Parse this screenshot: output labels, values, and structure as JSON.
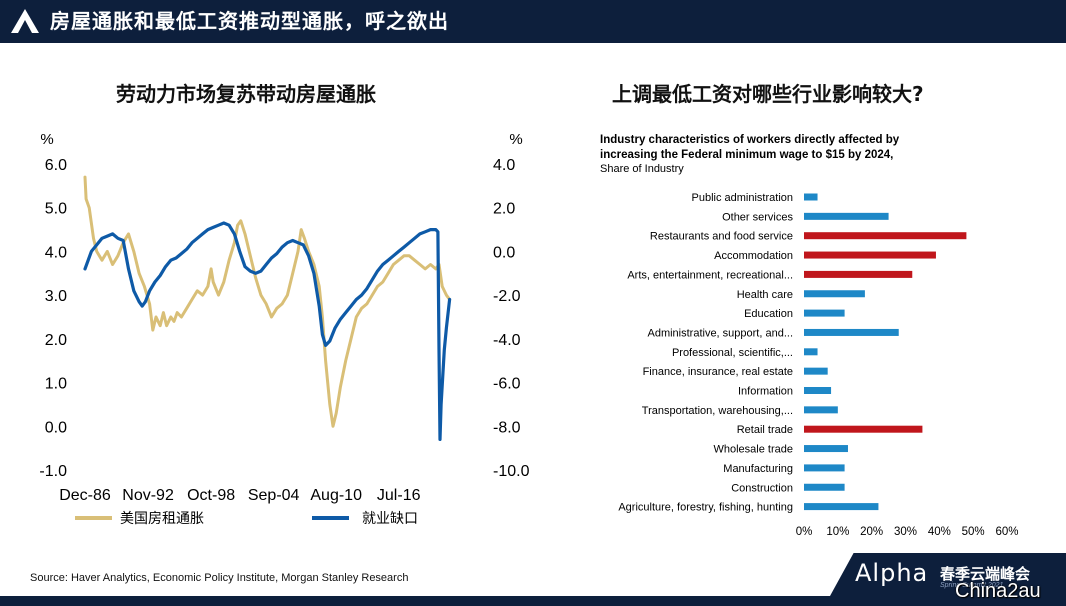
{
  "header": {
    "title": "房屋通胀和最低工资推动型通胀，呼之欲出"
  },
  "left_panel": {
    "title": "劳动力市场复苏带动房屋通胀"
  },
  "right_panel": {
    "title": "上调最低工资对哪些行业影响较大?"
  },
  "footer": {
    "source": "Source: Haver Analytics, Economic Policy Institute, Morgan Stanley Research",
    "brand_alpha": "Alpha",
    "brand_cn": "春季云端峰会",
    "brand_sub": "Spring Summit 2021",
    "watermark": "China2au"
  },
  "colors": {
    "navy": "#0d1f3c",
    "rent": "#d9bf77",
    "jobs_gap": "#0e5aa7",
    "bar_blue": "#1e88c7",
    "bar_red": "#c0161c"
  },
  "chart_data": [
    {
      "type": "line",
      "title": "劳动力市场复苏带动房屋通胀",
      "left_axis_unit": "%",
      "right_axis_unit": "%",
      "y_left_ticks": [
        "6.0",
        "5.0",
        "4.0",
        "3.0",
        "2.0",
        "1.0",
        "0.0",
        "-1.0"
      ],
      "y_right_ticks": [
        "4.0",
        "2.0",
        "0.0",
        "-2.0",
        "-4.0",
        "-6.0",
        "-8.0",
        "-10.0"
      ],
      "ylim_left": [
        -1,
        6
      ],
      "ylim_right": [
        -10,
        4
      ],
      "x_ticks": [
        "Dec-86",
        "Nov-92",
        "Oct-98",
        "Sep-04",
        "Aug-10",
        "Jul-16"
      ],
      "xlim": [
        1986.9,
        2022.0
      ],
      "series": [
        {
          "name": "美国房租通胀",
          "axis": "left",
          "points": [
            [
              1986.9,
              5.7
            ],
            [
              1987.0,
              5.2
            ],
            [
              1987.3,
              5.0
            ],
            [
              1987.7,
              4.3
            ],
            [
              1988.0,
              4.0
            ],
            [
              1988.5,
              3.8
            ],
            [
              1989.0,
              4.0
            ],
            [
              1989.5,
              3.7
            ],
            [
              1990.0,
              3.9
            ],
            [
              1990.5,
              4.2
            ],
            [
              1991.0,
              4.4
            ],
            [
              1991.5,
              4.0
            ],
            [
              1992.0,
              3.5
            ],
            [
              1992.5,
              3.2
            ],
            [
              1993.0,
              2.8
            ],
            [
              1993.3,
              2.2
            ],
            [
              1993.6,
              2.5
            ],
            [
              1994.0,
              2.3
            ],
            [
              1994.3,
              2.6
            ],
            [
              1994.6,
              2.3
            ],
            [
              1995.0,
              2.5
            ],
            [
              1995.3,
              2.4
            ],
            [
              1995.6,
              2.6
            ],
            [
              1996.0,
              2.5
            ],
            [
              1996.5,
              2.7
            ],
            [
              1997.0,
              2.9
            ],
            [
              1997.5,
              3.1
            ],
            [
              1998.0,
              3.0
            ],
            [
              1998.5,
              3.2
            ],
            [
              1998.8,
              3.6
            ],
            [
              1999.0,
              3.3
            ],
            [
              1999.5,
              3.0
            ],
            [
              2000.0,
              3.3
            ],
            [
              2000.5,
              3.8
            ],
            [
              2001.0,
              4.2
            ],
            [
              2001.3,
              4.6
            ],
            [
              2001.6,
              4.7
            ],
            [
              2002.0,
              4.4
            ],
            [
              2002.5,
              3.9
            ],
            [
              2003.0,
              3.4
            ],
            [
              2003.5,
              3.0
            ],
            [
              2004.0,
              2.8
            ],
            [
              2004.5,
              2.5
            ],
            [
              2005.0,
              2.7
            ],
            [
              2005.5,
              2.8
            ],
            [
              2006.0,
              3.0
            ],
            [
              2006.5,
              3.5
            ],
            [
              2007.0,
              4.0
            ],
            [
              2007.3,
              4.5
            ],
            [
              2007.6,
              4.3
            ],
            [
              2008.0,
              4.0
            ],
            [
              2008.5,
              3.7
            ],
            [
              2009.0,
              3.2
            ],
            [
              2009.3,
              2.5
            ],
            [
              2009.6,
              1.5
            ],
            [
              2010.0,
              0.5
            ],
            [
              2010.3,
              0.0
            ],
            [
              2010.6,
              0.3
            ],
            [
              2011.0,
              0.9
            ],
            [
              2011.5,
              1.5
            ],
            [
              2012.0,
              2.0
            ],
            [
              2012.5,
              2.5
            ],
            [
              2013.0,
              2.7
            ],
            [
              2013.5,
              2.8
            ],
            [
              2014.0,
              3.0
            ],
            [
              2014.5,
              3.2
            ],
            [
              2015.0,
              3.3
            ],
            [
              2015.5,
              3.5
            ],
            [
              2016.0,
              3.7
            ],
            [
              2016.5,
              3.8
            ],
            [
              2017.0,
              3.9
            ],
            [
              2017.5,
              3.9
            ],
            [
              2018.0,
              3.8
            ],
            [
              2018.5,
              3.7
            ],
            [
              2019.0,
              3.6
            ],
            [
              2019.5,
              3.7
            ],
            [
              2020.0,
              3.6
            ],
            [
              2020.3,
              3.7
            ],
            [
              2020.6,
              3.2
            ],
            [
              2021.0,
              3.0
            ],
            [
              2021.3,
              2.9
            ]
          ]
        },
        {
          "name": "就业缺口",
          "axis": "right",
          "points": [
            [
              1986.9,
              -0.8
            ],
            [
              1987.5,
              0.0
            ],
            [
              1988.0,
              0.3
            ],
            [
              1988.5,
              0.6
            ],
            [
              1989.0,
              0.7
            ],
            [
              1989.5,
              0.8
            ],
            [
              1990.0,
              0.6
            ],
            [
              1990.5,
              0.5
            ],
            [
              1991.0,
              -0.8
            ],
            [
              1991.5,
              -1.8
            ],
            [
              1992.0,
              -2.3
            ],
            [
              1992.3,
              -2.5
            ],
            [
              1992.6,
              -2.3
            ],
            [
              1993.0,
              -1.8
            ],
            [
              1993.5,
              -1.4
            ],
            [
              1994.0,
              -1.1
            ],
            [
              1994.5,
              -0.7
            ],
            [
              1995.0,
              -0.4
            ],
            [
              1995.5,
              -0.3
            ],
            [
              1996.0,
              -0.1
            ],
            [
              1996.5,
              0.1
            ],
            [
              1997.0,
              0.4
            ],
            [
              1997.5,
              0.6
            ],
            [
              1998.0,
              0.8
            ],
            [
              1998.5,
              1.0
            ],
            [
              1999.0,
              1.1
            ],
            [
              1999.5,
              1.2
            ],
            [
              2000.0,
              1.3
            ],
            [
              2000.5,
              1.2
            ],
            [
              2001.0,
              0.8
            ],
            [
              2001.5,
              0.0
            ],
            [
              2002.0,
              -0.7
            ],
            [
              2002.5,
              -0.9
            ],
            [
              2003.0,
              -1.0
            ],
            [
              2003.5,
              -0.9
            ],
            [
              2004.0,
              -0.6
            ],
            [
              2004.5,
              -0.3
            ],
            [
              2005.0,
              -0.1
            ],
            [
              2005.5,
              0.2
            ],
            [
              2006.0,
              0.4
            ],
            [
              2006.5,
              0.5
            ],
            [
              2007.0,
              0.4
            ],
            [
              2007.5,
              0.3
            ],
            [
              2008.0,
              -0.2
            ],
            [
              2008.5,
              -1.0
            ],
            [
              2009.0,
              -2.5
            ],
            [
              2009.3,
              -3.8
            ],
            [
              2009.6,
              -4.3
            ],
            [
              2010.0,
              -4.1
            ],
            [
              2010.5,
              -3.5
            ],
            [
              2011.0,
              -3.1
            ],
            [
              2011.5,
              -2.8
            ],
            [
              2012.0,
              -2.5
            ],
            [
              2012.5,
              -2.2
            ],
            [
              2013.0,
              -2.0
            ],
            [
              2013.5,
              -1.7
            ],
            [
              2014.0,
              -1.3
            ],
            [
              2014.5,
              -0.9
            ],
            [
              2015.0,
              -0.6
            ],
            [
              2015.5,
              -0.4
            ],
            [
              2016.0,
              -0.2
            ],
            [
              2016.5,
              0.0
            ],
            [
              2017.0,
              0.2
            ],
            [
              2017.5,
              0.4
            ],
            [
              2018.0,
              0.6
            ],
            [
              2018.5,
              0.8
            ],
            [
              2019.0,
              0.9
            ],
            [
              2019.5,
              1.0
            ],
            [
              2020.0,
              1.0
            ],
            [
              2020.2,
              0.9
            ],
            [
              2020.3,
              -4.5
            ],
            [
              2020.4,
              -8.6
            ],
            [
              2020.5,
              -7.0
            ],
            [
              2020.8,
              -4.5
            ],
            [
              2021.0,
              -3.5
            ],
            [
              2021.3,
              -2.2
            ]
          ]
        }
      ],
      "legend": [
        "美国房租通胀",
        "就业缺口"
      ],
      "legend_position": "bottom",
      "grid": false
    },
    {
      "type": "bar",
      "orientation": "horizontal",
      "title": "Industry characteristics of workers directly affected by increasing the Federal minimum wage to $15 by 2024,",
      "subtitle": "Share of Industry",
      "categories": [
        "Public administration",
        "Other services",
        "Restaurants and food service",
        "Accommodation",
        "Arts, entertainment, recreational...",
        "Health care",
        "Education",
        "Administrative, support, and...",
        "Professional, scientific,...",
        "Finance, insurance, real estate",
        "Information",
        "Transportation, warehousing,...",
        "Retail trade",
        "Wholesale trade",
        "Manufacturing",
        "Construction",
        "Agriculture, forestry, fishing, hunting"
      ],
      "values": [
        4,
        25,
        48,
        39,
        32,
        18,
        12,
        28,
        4,
        7,
        8,
        10,
        35,
        13,
        12,
        12,
        22
      ],
      "highlight": [
        false,
        false,
        true,
        true,
        true,
        false,
        false,
        false,
        false,
        false,
        false,
        false,
        true,
        false,
        false,
        false,
        false
      ],
      "x_ticks": [
        "0%",
        "10%",
        "20%",
        "30%",
        "40%",
        "50%",
        "60%"
      ],
      "xlim": [
        0,
        60
      ],
      "grid": false
    }
  ]
}
